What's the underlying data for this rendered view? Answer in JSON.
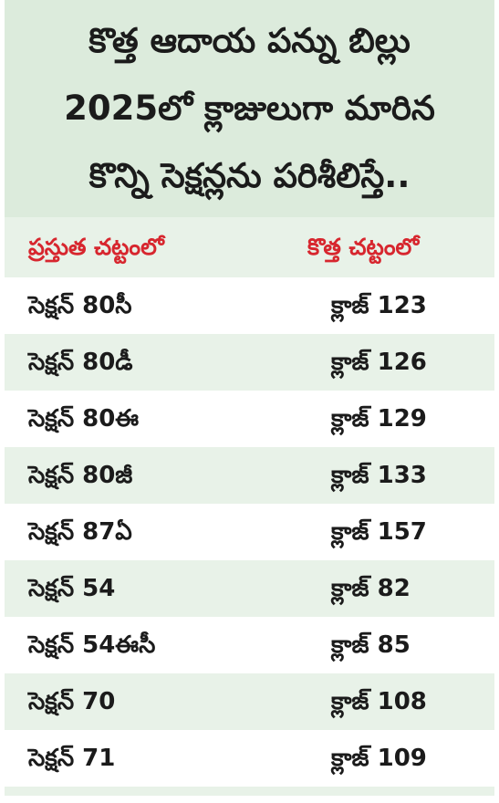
{
  "title": {
    "lines": [
      "కొత్త ఆదాయ పన్ను బిల్లు",
      "2025లో క్లాజులుగా మారిన",
      "కొన్ని సెక్షన్లను పరిశీలిస్తే.."
    ]
  },
  "table": {
    "headers": [
      "ప్రస్తుత చట్టంలో",
      "కొత్త చట్టంలో"
    ],
    "rows": [
      [
        "సెక్షన్‌ 80సీ",
        "క్లాజ్‌ 123"
      ],
      [
        "సెక్షన్‌ 80డీ",
        "క్లాజ్‌ 126"
      ],
      [
        "సెక్షన్‌ 80ఈ",
        "క్లాజ్‌ 129"
      ],
      [
        "సెక్షన్‌ 80జీ",
        "క్లాజ్‌ 133"
      ],
      [
        "సెక్షన్‌ 87ఏ",
        "క్లాజ్‌ 157"
      ],
      [
        "సెక్షన్‌ 54",
        "క్లాజ్‌ 82"
      ],
      [
        "సెక్షన్‌ 54ఈసీ",
        "క్లాజ్‌ 85"
      ],
      [
        "సెక్షన్‌ 70",
        "క్లాజ్‌ 108"
      ],
      [
        "సెక్షన్‌ 71",
        "క్లాజ్‌ 109"
      ]
    ]
  },
  "colors": {
    "title_bg": "#dcebdc",
    "band_bg": "#e8f2e8",
    "header_text": "#d7262e",
    "body_text": "#1b1b1b"
  }
}
